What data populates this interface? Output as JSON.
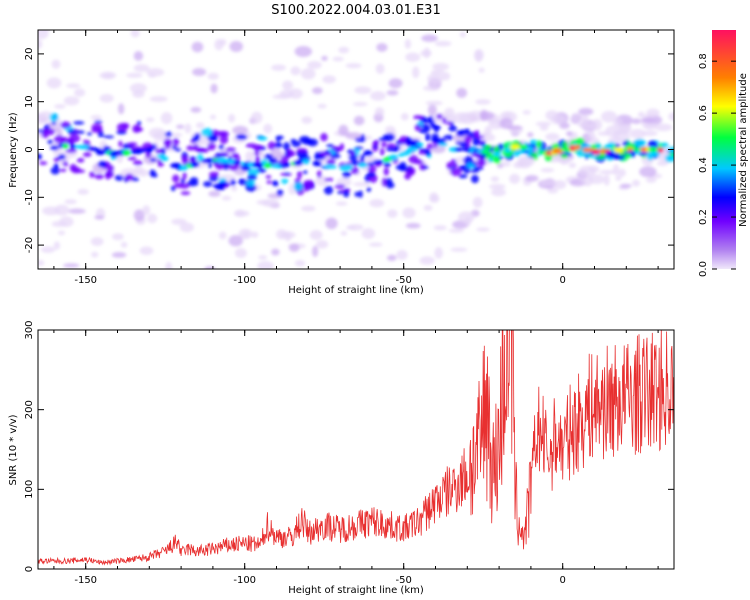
{
  "title": "S100.2022.004.03.01.E31",
  "chart_data": [
    {
      "type": "heatmap",
      "xlabel": "Height of straight line (km)",
      "ylabel": "Frequency (Hz)",
      "xlim": [
        -165,
        35
      ],
      "ylim": [
        -25,
        25
      ],
      "x_ticks": [
        -150,
        -100,
        -50,
        0
      ],
      "y_ticks": [
        -20,
        -10,
        0,
        10,
        20
      ],
      "grid": false,
      "colorbar": {
        "label": "Normalized spectral amplitude",
        "range": [
          0,
          0.92
        ],
        "ticks": [
          0.0,
          0.2,
          0.4,
          0.6,
          0.8
        ],
        "colormap": [
          "#e8d8f8",
          "#7000ff",
          "#0000ff",
          "#00d0ff",
          "#00ff40",
          "#ffff00",
          "#ff8000",
          "#ff1060"
        ]
      },
      "ridge_centerline": [
        {
          "x": -165,
          "y": 1
        },
        {
          "x": -150,
          "y": 0.5
        },
        {
          "x": -140,
          "y": -1
        },
        {
          "x": -130,
          "y": 0
        },
        {
          "x": -120,
          "y": -4
        },
        {
          "x": -110,
          "y": -2
        },
        {
          "x": -100,
          "y": -3
        },
        {
          "x": -90,
          "y": -3.5
        },
        {
          "x": -80,
          "y": -2.5
        },
        {
          "x": -70,
          "y": -4
        },
        {
          "x": -60,
          "y": -3
        },
        {
          "x": -55,
          "y": -2
        },
        {
          "x": -50,
          "y": -1
        },
        {
          "x": -45,
          "y": 1
        },
        {
          "x": -40,
          "y": 2
        },
        {
          "x": -35,
          "y": 0
        },
        {
          "x": -30,
          "y": 0
        },
        {
          "x": -20,
          "y": -1
        },
        {
          "x": -15,
          "y": 0.5
        },
        {
          "x": -10,
          "y": 0.5
        },
        {
          "x": -5,
          "y": -1
        },
        {
          "x": 0,
          "y": 0
        },
        {
          "x": 5,
          "y": 0.5
        },
        {
          "x": 10,
          "y": -0.5
        },
        {
          "x": 20,
          "y": 0
        },
        {
          "x": 30,
          "y": 0
        },
        {
          "x": 35,
          "y": -1
        }
      ]
    },
    {
      "type": "line",
      "xlabel": "Height of straight line (km)",
      "ylabel": "SNR (10 * v/v)",
      "xlim": [
        -165,
        35
      ],
      "ylim": [
        0,
        300
      ],
      "x_ticks": [
        -150,
        -100,
        -50,
        0
      ],
      "y_ticks": [
        0,
        100,
        200,
        300
      ],
      "grid": false,
      "color": "#e83030",
      "series": [
        {
          "x": [
            -165,
            -160,
            -155,
            -150,
            -145,
            -140,
            -135,
            -130,
            -125,
            -121,
            -120,
            -118,
            -115,
            -110,
            -105,
            -100,
            -95,
            -93,
            -90,
            -85,
            -82,
            -80,
            -75,
            -70,
            -65,
            -60,
            -55,
            -50,
            -45,
            -40,
            -35,
            -30,
            -26,
            -24,
            -22,
            -20,
            -18,
            -16,
            -15,
            -14,
            -12,
            -10,
            -8,
            -6,
            -4,
            -2,
            0,
            2,
            4,
            6,
            8,
            10,
            15,
            20,
            25,
            30,
            35
          ],
          "y": [
            10,
            10,
            10,
            12,
            8,
            10,
            12,
            15,
            22,
            35,
            20,
            25,
            22,
            25,
            30,
            32,
            30,
            55,
            40,
            40,
            62,
            45,
            55,
            50,
            55,
            60,
            55,
            50,
            60,
            85,
            100,
            120,
            150,
            220,
            120,
            160,
            280,
            300,
            100,
            60,
            40,
            100,
            180,
            160,
            140,
            170,
            150,
            170,
            180,
            190,
            200,
            205,
            210,
            215,
            220,
            225,
            230
          ]
        }
      ]
    }
  ]
}
